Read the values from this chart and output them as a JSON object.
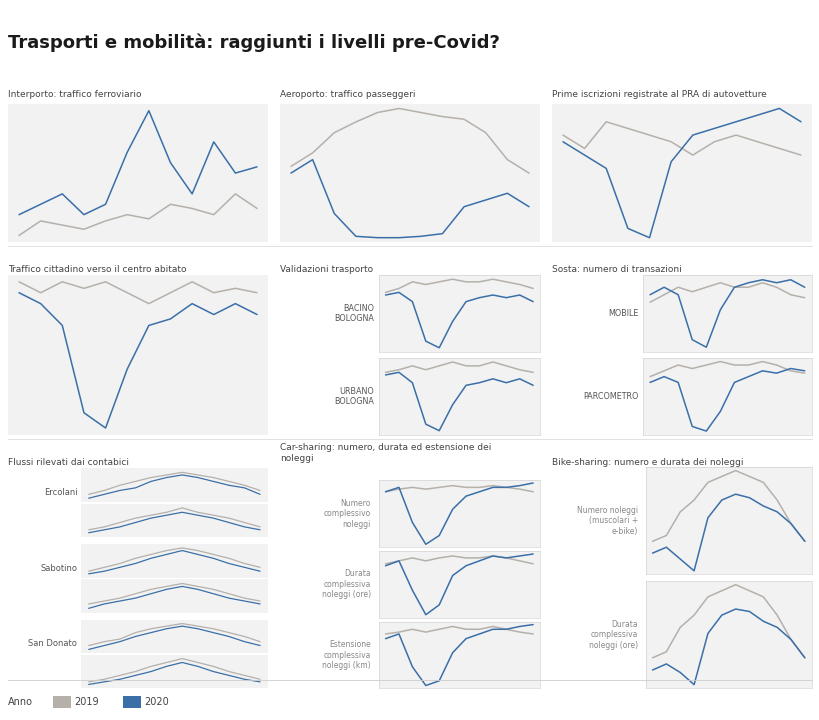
{
  "title": "Trasporti e mobilità: raggiunti i livelli pre-Covid?",
  "color_2019": "#b5b0aa",
  "color_2020": "#3a6fa8",
  "bg_color": "#ffffff",
  "panel_bg": "#f2f2f2",
  "legend_anno": "Anno",
  "legend_2019": "2019",
  "legend_2020": "2020",
  "charts": {
    "interporto": {
      "title": "Interporto: traffico ferroviario",
      "y2019": [
        4.5,
        5.2,
        5.0,
        4.8,
        5.2,
        5.5,
        5.3,
        6.0,
        5.8,
        5.5,
        6.5,
        5.8
      ],
      "y2020": [
        5.5,
        6.0,
        6.5,
        5.5,
        6.0,
        8.5,
        10.5,
        8.0,
        6.5,
        9.0,
        7.5,
        7.8
      ]
    },
    "aeroporto": {
      "title": "Aeroporto: traffico passeggeri",
      "y2019": [
        5.5,
        6.5,
        8.0,
        8.8,
        9.5,
        9.8,
        9.5,
        9.2,
        9.0,
        8.0,
        6.0,
        5.0
      ],
      "y2020": [
        5.0,
        6.0,
        2.0,
        0.3,
        0.2,
        0.2,
        0.3,
        0.5,
        2.5,
        3.0,
        3.5,
        2.5
      ]
    },
    "pra": {
      "title": "Prime iscrizioni registrate al PRA di autovetture",
      "y2019": [
        8.5,
        7.5,
        9.5,
        9.0,
        8.5,
        8.0,
        7.0,
        8.0,
        8.5,
        8.0,
        7.5,
        7.0
      ],
      "y2020": [
        8.0,
        7.0,
        6.0,
        1.5,
        0.8,
        6.5,
        8.5,
        9.0,
        9.5,
        10.0,
        10.5,
        9.5
      ]
    },
    "traffico": {
      "title": "Traffico cittadino verso il centro abitato",
      "y2019": [
        7.5,
        7.0,
        7.5,
        7.2,
        7.5,
        7.0,
        6.5,
        7.0,
        7.5,
        7.0,
        7.2,
        7.0
      ],
      "y2020": [
        7.0,
        6.5,
        5.5,
        1.5,
        0.8,
        3.5,
        5.5,
        5.8,
        6.5,
        6.0,
        6.5,
        6.0
      ]
    },
    "val_bacino": {
      "title": "BACINO\nBOLOGNA",
      "y2019": [
        6.2,
        6.5,
        7.0,
        6.8,
        7.0,
        7.2,
        7.0,
        7.0,
        7.2,
        7.0,
        6.8,
        6.5
      ],
      "y2020": [
        6.0,
        6.2,
        5.5,
        2.5,
        2.0,
        4.0,
        5.5,
        5.8,
        6.0,
        5.8,
        6.0,
        5.5
      ]
    },
    "val_urbano": {
      "title": "URBANO\nBOLOGNA",
      "y2019": [
        6.0,
        6.2,
        6.5,
        6.2,
        6.5,
        6.8,
        6.5,
        6.5,
        6.8,
        6.5,
        6.2,
        6.0
      ],
      "y2020": [
        5.8,
        6.0,
        5.2,
        2.0,
        1.5,
        3.5,
        5.0,
        5.2,
        5.5,
        5.2,
        5.5,
        5.0
      ]
    },
    "sosta_mobile": {
      "title": "MOBILE",
      "y2019": [
        6.5,
        7.0,
        7.5,
        7.2,
        7.5,
        7.8,
        7.5,
        7.5,
        7.8,
        7.5,
        7.0,
        6.8
      ],
      "y2020": [
        7.0,
        7.5,
        7.0,
        4.0,
        3.5,
        6.0,
        7.5,
        7.8,
        8.0,
        7.8,
        8.0,
        7.5
      ]
    },
    "sosta_parcometro": {
      "title": "PARCOMETRO",
      "y2019": [
        5.5,
        6.0,
        6.5,
        6.2,
        6.5,
        6.8,
        6.5,
        6.5,
        6.8,
        6.5,
        6.0,
        5.8
      ],
      "y2020": [
        5.0,
        5.5,
        5.0,
        1.2,
        0.8,
        2.5,
        5.0,
        5.5,
        6.0,
        5.8,
        6.2,
        6.0
      ]
    },
    "ercolani": {
      "title": "Ercolani",
      "y2019a": [
        5.5,
        5.8,
        6.2,
        6.5,
        6.8,
        7.0,
        7.2,
        7.0,
        6.8,
        6.5,
        6.2,
        5.8
      ],
      "y2020a": [
        5.2,
        5.5,
        5.8,
        6.0,
        6.5,
        6.8,
        7.0,
        6.8,
        6.5,
        6.2,
        6.0,
        5.5
      ],
      "y2019b": [
        5.0,
        5.2,
        5.5,
        5.8,
        6.0,
        6.2,
        6.5,
        6.2,
        6.0,
        5.8,
        5.5,
        5.2
      ],
      "y2020b": [
        4.8,
        5.0,
        5.2,
        5.5,
        5.8,
        6.0,
        6.2,
        6.0,
        5.8,
        5.5,
        5.2,
        5.0
      ]
    },
    "sabotino": {
      "title": "Sabotino",
      "y2019a": [
        5.2,
        5.5,
        5.8,
        6.2,
        6.5,
        6.8,
        7.0,
        6.8,
        6.5,
        6.2,
        5.8,
        5.5
      ],
      "y2020a": [
        5.0,
        5.2,
        5.5,
        5.8,
        6.2,
        6.5,
        6.8,
        6.5,
        6.2,
        5.8,
        5.5,
        5.2
      ],
      "y2019b": [
        4.8,
        5.0,
        5.2,
        5.5,
        5.8,
        6.0,
        6.2,
        6.0,
        5.8,
        5.5,
        5.2,
        5.0
      ],
      "y2020b": [
        4.5,
        4.8,
        5.0,
        5.2,
        5.5,
        5.8,
        6.0,
        5.8,
        5.5,
        5.2,
        5.0,
        4.8
      ]
    },
    "san_donato": {
      "title": "San Donato",
      "y2019a": [
        5.5,
        5.8,
        6.0,
        6.5,
        6.8,
        7.0,
        7.2,
        7.0,
        6.8,
        6.5,
        6.2,
        5.8
      ],
      "y2020a": [
        5.2,
        5.5,
        5.8,
        6.2,
        6.5,
        6.8,
        7.0,
        6.8,
        6.5,
        6.2,
        5.8,
        5.5
      ],
      "y2019b": [
        5.0,
        5.2,
        5.5,
        5.8,
        6.2,
        6.5,
        6.8,
        6.5,
        6.2,
        5.8,
        5.5,
        5.2
      ],
      "y2020b": [
        4.8,
        5.0,
        5.2,
        5.5,
        5.8,
        6.2,
        6.5,
        6.2,
        5.8,
        5.5,
        5.2,
        5.0
      ]
    },
    "car_numero": {
      "title": "Numero\ncomplessivo\nnoleggi",
      "y2019": [
        6.5,
        6.8,
        7.0,
        6.8,
        7.0,
        7.2,
        7.0,
        7.0,
        7.2,
        7.0,
        6.8,
        6.5
      ],
      "y2020": [
        6.5,
        7.0,
        3.0,
        0.5,
        1.5,
        4.5,
        6.0,
        6.5,
        7.0,
        7.0,
        7.2,
        7.5
      ]
    },
    "car_durata": {
      "title": "Durata\ncomplessiva\nnoleggi (ore)",
      "y2019": [
        6.2,
        6.5,
        6.8,
        6.5,
        6.8,
        7.0,
        6.8,
        6.8,
        7.0,
        6.8,
        6.5,
        6.2
      ],
      "y2020": [
        6.0,
        6.5,
        3.5,
        1.0,
        2.0,
        5.0,
        6.0,
        6.5,
        7.0,
        6.8,
        7.0,
        7.2
      ]
    },
    "car_estensione": {
      "title": "Estensione\ncomplessiva\nnoleggi (km)",
      "y2019": [
        6.0,
        6.2,
        6.5,
        6.2,
        6.5,
        6.8,
        6.5,
        6.5,
        6.8,
        6.5,
        6.2,
        6.0
      ],
      "y2020": [
        5.5,
        6.0,
        2.5,
        0.5,
        1.0,
        4.0,
        5.5,
        6.0,
        6.5,
        6.5,
        6.8,
        7.0
      ]
    },
    "bike_numero": {
      "title": "Numero noleggi\n(muscolari +\ne-bike)",
      "y2019": [
        3.5,
        4.0,
        6.0,
        7.0,
        8.5,
        9.0,
        9.5,
        9.0,
        8.5,
        7.0,
        5.0,
        3.5
      ],
      "y2020": [
        2.5,
        3.0,
        2.0,
        1.0,
        5.5,
        7.0,
        7.5,
        7.2,
        6.5,
        6.0,
        5.0,
        3.5
      ]
    },
    "bike_durata": {
      "title": "Durata\ncomplessiva\nnoleggi (ore)",
      "y2019": [
        3.0,
        3.5,
        5.5,
        6.5,
        8.0,
        8.5,
        9.0,
        8.5,
        8.0,
        6.5,
        4.5,
        3.0
      ],
      "y2020": [
        2.0,
        2.5,
        1.8,
        0.8,
        5.0,
        6.5,
        7.0,
        6.8,
        6.0,
        5.5,
        4.5,
        3.0
      ]
    }
  }
}
